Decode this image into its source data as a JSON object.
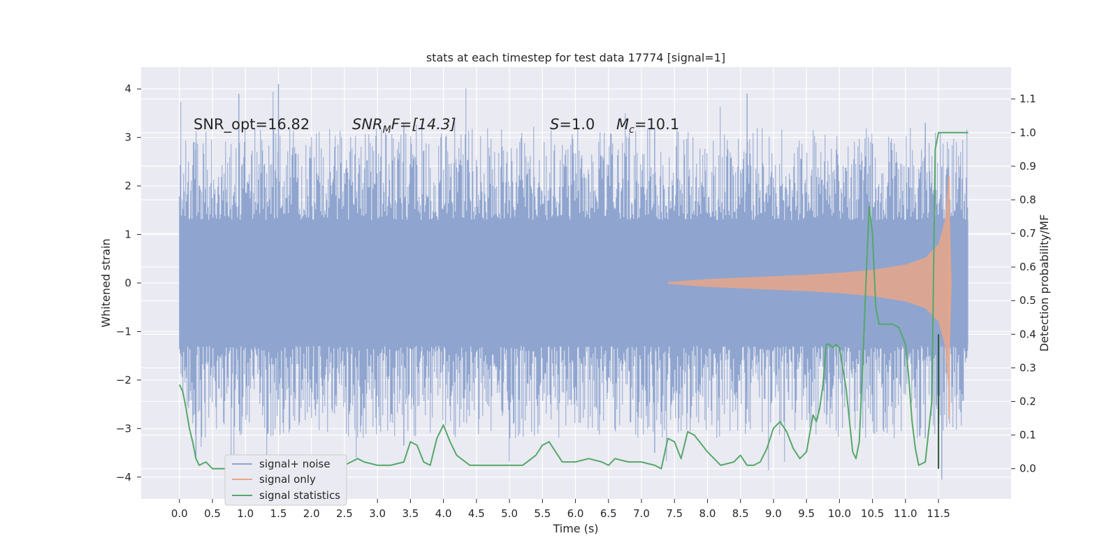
{
  "chart_data": {
    "type": "line",
    "title": "stats at each timestep for test data 17774 [signal=1]",
    "xlabel": "Time (s)",
    "ylabel": "Whitened strain",
    "y2label": "Detection probability/MF",
    "xlim": [
      -0.58,
      12.6
    ],
    "ylim": [
      -4.45,
      4.45
    ],
    "y2lim": [
      -0.09,
      1.195
    ],
    "xticks": [
      "0.0",
      "0.5",
      "1.0",
      "1.5",
      "2.0",
      "2.5",
      "3.0",
      "3.5",
      "4.0",
      "4.5",
      "5.0",
      "5.5",
      "6.0",
      "6.5",
      "7.0",
      "7.5",
      "8.0",
      "8.5",
      "9.0",
      "9.5",
      "10.0",
      "10.5",
      "11.0",
      "11.5"
    ],
    "yticks": [
      "4",
      "3",
      "2",
      "1",
      "0",
      "−1",
      "−2",
      "−3",
      "−4"
    ],
    "y2ticks": [
      "1.1",
      "1.0",
      "0.9",
      "0.8",
      "0.7",
      "0.6",
      "0.5",
      "0.4",
      "0.3",
      "0.2",
      "0.1",
      "0.0"
    ],
    "grid": true,
    "legend_position": "lower-left",
    "annotations": {
      "snr_opt": "SNR_opt=16.82",
      "snr_mf_main": "SNR",
      "snr_mf_sub": "M",
      "snr_mf_rest": "F=[14.3]",
      "s_main": "S",
      "s_rest": "=1.0",
      "mc_main": "M",
      "mc_sub": "c",
      "mc_rest": "=10.1"
    },
    "series": [
      {
        "name": "signal+ noise",
        "axis": "left",
        "color": "#8fa5cf",
        "description_values": {
          "t_start": 0.0,
          "t_end": 11.95,
          "peak_max": 4.1,
          "peak_min": -4.05
        }
      },
      {
        "name": "signal only",
        "axis": "left",
        "color": "#e8a688",
        "envelope_t": [
          7.4,
          8.0,
          8.5,
          9.0,
          9.5,
          10.0,
          10.5,
          11.0,
          11.3,
          11.5,
          11.6,
          11.65,
          11.7
        ],
        "envelope_a": [
          0.02,
          0.08,
          0.11,
          0.14,
          0.17,
          0.21,
          0.27,
          0.38,
          0.52,
          0.8,
          1.3,
          2.2,
          0.0
        ]
      },
      {
        "name": "signal statistics",
        "axis": "right",
        "color": "#55a868",
        "x": [
          0.0,
          0.05,
          0.1,
          0.15,
          0.2,
          0.25,
          0.3,
          0.4,
          0.5,
          0.6,
          0.7,
          0.8,
          1.0,
          1.2,
          1.4,
          1.5,
          1.6,
          1.7,
          1.8,
          1.9,
          2.0,
          2.1,
          2.2,
          2.4,
          2.6,
          2.7,
          2.8,
          3.0,
          3.2,
          3.4,
          3.5,
          3.6,
          3.7,
          3.8,
          3.9,
          4.0,
          4.1,
          4.2,
          4.4,
          4.6,
          4.8,
          5.0,
          5.2,
          5.4,
          5.5,
          5.6,
          5.7,
          5.8,
          6.0,
          6.2,
          6.4,
          6.5,
          6.6,
          6.8,
          7.0,
          7.2,
          7.3,
          7.4,
          7.5,
          7.6,
          7.7,
          7.8,
          8.0,
          8.2,
          8.4,
          8.5,
          8.6,
          8.7,
          8.8,
          8.9,
          9.0,
          9.1,
          9.2,
          9.3,
          9.4,
          9.5,
          9.6,
          9.65,
          9.7,
          9.75,
          9.8,
          9.85,
          9.9,
          9.95,
          10.0,
          10.1,
          10.2,
          10.25,
          10.3,
          10.35,
          10.4,
          10.45,
          10.5,
          10.55,
          10.6,
          10.7,
          10.8,
          10.9,
          11.0,
          11.05,
          11.1,
          11.15,
          11.2,
          11.3,
          11.4,
          11.45,
          11.5,
          11.55,
          11.6,
          11.65,
          11.7,
          11.8,
          11.9,
          11.95
        ],
        "y": [
          0.25,
          0.23,
          0.18,
          0.12,
          0.08,
          0.03,
          0.01,
          0.02,
          0.0,
          0.0,
          0.0,
          0.0,
          0.0,
          0.0,
          0.01,
          0.01,
          0.0,
          0.02,
          0.03,
          0.02,
          0.02,
          0.02,
          0.02,
          0.0,
          0.02,
          0.03,
          0.02,
          0.01,
          0.01,
          0.02,
          0.08,
          0.07,
          0.02,
          0.01,
          0.09,
          0.13,
          0.08,
          0.04,
          0.01,
          0.01,
          0.01,
          0.01,
          0.01,
          0.04,
          0.07,
          0.08,
          0.05,
          0.02,
          0.02,
          0.03,
          0.02,
          0.01,
          0.03,
          0.02,
          0.02,
          0.01,
          0.0,
          0.09,
          0.08,
          0.03,
          0.11,
          0.1,
          0.05,
          0.01,
          0.02,
          0.04,
          0.01,
          0.01,
          0.02,
          0.06,
          0.12,
          0.14,
          0.11,
          0.06,
          0.03,
          0.05,
          0.16,
          0.14,
          0.18,
          0.25,
          0.37,
          0.37,
          0.36,
          0.37,
          0.36,
          0.24,
          0.05,
          0.03,
          0.08,
          0.3,
          0.55,
          0.78,
          0.7,
          0.48,
          0.43,
          0.43,
          0.43,
          0.42,
          0.37,
          0.27,
          0.14,
          0.06,
          0.01,
          0.02,
          0.2,
          0.95,
          1.0,
          1.0,
          1.0,
          1.0,
          1.0,
          1.0,
          1.0,
          1.0
        ]
      }
    ]
  },
  "legend": {
    "items": [
      {
        "label": "signal+ noise",
        "color": "#8fa5cf"
      },
      {
        "label": "signal only",
        "color": "#e8a688"
      },
      {
        "label": "signal statistics",
        "color": "#55a868"
      }
    ]
  }
}
